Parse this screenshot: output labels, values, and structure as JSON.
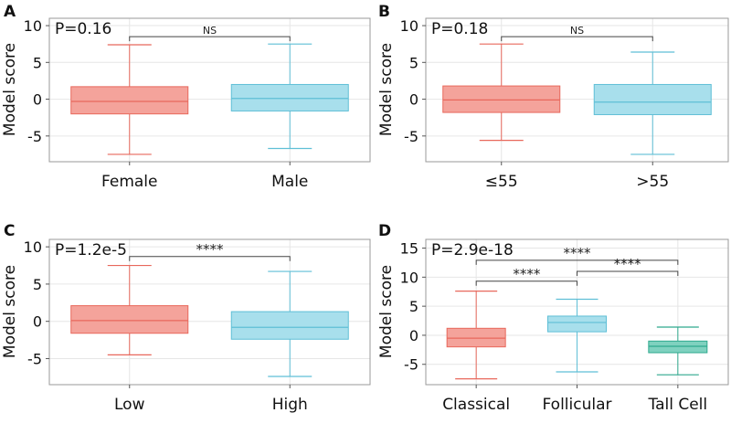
{
  "colors": {
    "red_fill": "#f4a39b",
    "red_line": "#e8685c",
    "blue_fill": "#a8dfec",
    "blue_line": "#5fbfd6",
    "green_fill": "#7fd1bf",
    "green_line": "#2fa98e",
    "grid": "#e6e6e6",
    "frame": "#9a9a9a"
  },
  "chart_data": [
    {
      "type": "box",
      "panel": "A",
      "ylabel": "Model score",
      "pvalue": "P=0.16",
      "ylim": [
        -8.5,
        11
      ],
      "yticks": [
        -5,
        0,
        5,
        10
      ],
      "categories": [
        "Female",
        "Male"
      ],
      "boxes": [
        {
          "name": "Female",
          "color": "red",
          "whisker_low": -7.5,
          "q1": -2.0,
          "median": -0.3,
          "q3": 1.7,
          "whisker_high": 7.4
        },
        {
          "name": "Male",
          "color": "blue",
          "whisker_low": -6.7,
          "q1": -1.6,
          "median": 0.1,
          "q3": 2.0,
          "whisker_high": 7.5
        }
      ],
      "comparisons": [
        {
          "from": 0,
          "to": 1,
          "label": "NS",
          "y": 8.5
        }
      ]
    },
    {
      "type": "box",
      "panel": "B",
      "ylabel": "Model score",
      "pvalue": "P=0.18",
      "ylim": [
        -8.5,
        11
      ],
      "yticks": [
        -5,
        0,
        5,
        10
      ],
      "categories": [
        "≤55",
        ">55"
      ],
      "boxes": [
        {
          "name": "≤55",
          "color": "red",
          "whisker_low": -5.6,
          "q1": -1.8,
          "median": -0.1,
          "q3": 1.8,
          "whisker_high": 7.5
        },
        {
          "name": ">55",
          "color": "blue",
          "whisker_low": -7.5,
          "q1": -2.1,
          "median": -0.4,
          "q3": 2.0,
          "whisker_high": 6.4
        }
      ],
      "comparisons": [
        {
          "from": 0,
          "to": 1,
          "label": "NS",
          "y": 8.5
        }
      ]
    },
    {
      "type": "box",
      "panel": "C",
      "ylabel": "Model score",
      "pvalue": "P=1.2e-5",
      "ylim": [
        -8.5,
        11
      ],
      "yticks": [
        -5,
        0,
        5,
        10
      ],
      "categories": [
        "Low",
        "High"
      ],
      "boxes": [
        {
          "name": "Low",
          "color": "red",
          "whisker_low": -4.5,
          "q1": -1.6,
          "median": 0.1,
          "q3": 2.1,
          "whisker_high": 7.5
        },
        {
          "name": "High",
          "color": "blue",
          "whisker_low": -7.4,
          "q1": -2.4,
          "median": -0.8,
          "q3": 1.3,
          "whisker_high": 6.7
        }
      ],
      "comparisons": [
        {
          "from": 0,
          "to": 1,
          "label": "****",
          "y": 8.7
        }
      ]
    },
    {
      "type": "box",
      "panel": "D",
      "ylabel": "Model score",
      "pvalue": "P=2.9e-18",
      "ylim": [
        -8.5,
        16.5
      ],
      "yticks": [
        -5,
        0,
        5,
        10,
        15
      ],
      "categories": [
        "Classical",
        "Follicular",
        "Tall Cell"
      ],
      "boxes": [
        {
          "name": "Classical",
          "color": "red",
          "whisker_low": -7.5,
          "q1": -2.0,
          "median": -0.5,
          "q3": 1.2,
          "whisker_high": 7.6
        },
        {
          "name": "Follicular",
          "color": "blue",
          "whisker_low": -6.3,
          "q1": 0.6,
          "median": 2.2,
          "q3": 3.3,
          "whisker_high": 6.2
        },
        {
          "name": "Tall Cell",
          "color": "green",
          "whisker_low": -6.8,
          "q1": -3.0,
          "median": -1.9,
          "q3": -1.0,
          "whisker_high": 1.4
        }
      ],
      "comparisons": [
        {
          "from": 0,
          "to": 2,
          "label": "****",
          "y": 12.9
        },
        {
          "from": 0,
          "to": 1,
          "label": "****",
          "y": 9.3
        },
        {
          "from": 1,
          "to": 2,
          "label": "****",
          "y": 11.0
        }
      ]
    }
  ]
}
